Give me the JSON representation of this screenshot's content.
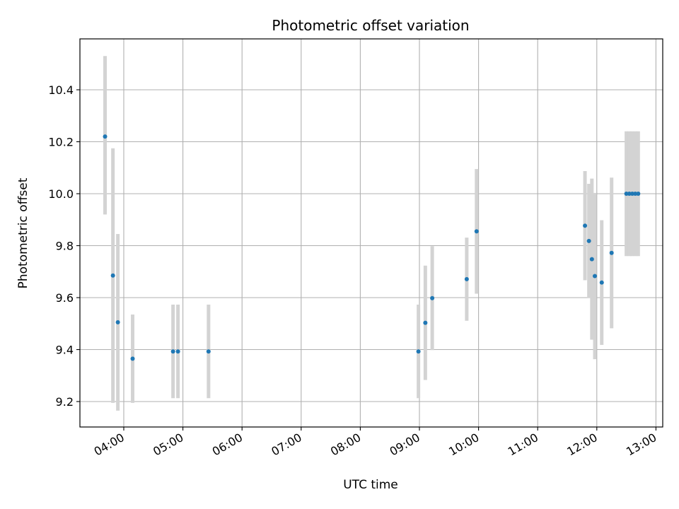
{
  "chart_data": {
    "type": "scatter",
    "title": "Photometric offset variation",
    "xlabel": "UTC time",
    "ylabel": "Photometric offset",
    "x_ticks": [
      "04:00",
      "05:00",
      "06:00",
      "07:00",
      "08:00",
      "09:00",
      "10:00",
      "11:00",
      "12:00",
      "13:00"
    ],
    "y_ticks": [
      "9.2",
      "9.4",
      "9.6",
      "9.8",
      "10.0",
      "10.2",
      "10.4"
    ],
    "xlim": [
      "03:41",
      "13:06"
    ],
    "ylim": [
      9.1,
      10.59
    ],
    "grid": true,
    "legend": "none",
    "colors": {
      "points": "#1f77b4",
      "errorbars": "#d3d3d3",
      "grid": "#b0b0b0"
    },
    "points": [
      {
        "x": "03:41",
        "y": 10.22,
        "err_low": 0.3,
        "err_high": 0.31
      },
      {
        "x": "03:49",
        "y": 9.685,
        "err_low": 0.49,
        "err_high": 0.49
      },
      {
        "x": "03:54",
        "y": 9.505,
        "err_low": 0.34,
        "err_high": 0.34
      },
      {
        "x": "04:09",
        "y": 9.365,
        "err_low": 0.17,
        "err_high": 0.17
      },
      {
        "x": "04:50",
        "y": 9.393,
        "err_low": 0.18,
        "err_high": 0.18
      },
      {
        "x": "04:55",
        "y": 9.393,
        "err_low": 0.18,
        "err_high": 0.18
      },
      {
        "x": "05:26",
        "y": 9.393,
        "err_low": 0.18,
        "err_high": 0.18
      },
      {
        "x": "08:59",
        "y": 9.393,
        "err_low": 0.18,
        "err_high": 0.18
      },
      {
        "x": "09:06",
        "y": 9.503,
        "err_low": 0.22,
        "err_high": 0.22
      },
      {
        "x": "09:13",
        "y": 9.598,
        "err_low": 0.2,
        "err_high": 0.2
      },
      {
        "x": "09:48",
        "y": 9.671,
        "err_low": 0.16,
        "err_high": 0.16
      },
      {
        "x": "09:58",
        "y": 9.855,
        "err_low": 0.24,
        "err_high": 0.24
      },
      {
        "x": "11:48",
        "y": 9.877,
        "err_low": 0.21,
        "err_high": 0.21
      },
      {
        "x": "11:52",
        "y": 9.818,
        "err_low": 0.22,
        "err_high": 0.22
      },
      {
        "x": "11:55",
        "y": 9.748,
        "err_low": 0.31,
        "err_high": 0.31
      },
      {
        "x": "11:58",
        "y": 9.683,
        "err_low": 0.32,
        "err_high": 0.32
      },
      {
        "x": "12:05",
        "y": 9.658,
        "err_low": 0.24,
        "err_high": 0.24
      },
      {
        "x": "12:15",
        "y": 9.772,
        "err_low": 0.29,
        "err_high": 0.29
      },
      {
        "x": "12:30",
        "y": 10.0,
        "err_low": 0.24,
        "err_high": 0.24
      },
      {
        "x": "12:33",
        "y": 10.0,
        "err_low": 0.24,
        "err_high": 0.24
      },
      {
        "x": "12:36",
        "y": 10.0,
        "err_low": 0.24,
        "err_high": 0.24
      },
      {
        "x": "12:39",
        "y": 10.0,
        "err_low": 0.24,
        "err_high": 0.24
      },
      {
        "x": "12:42",
        "y": 10.0,
        "err_low": 0.24,
        "err_high": 0.24
      }
    ]
  }
}
